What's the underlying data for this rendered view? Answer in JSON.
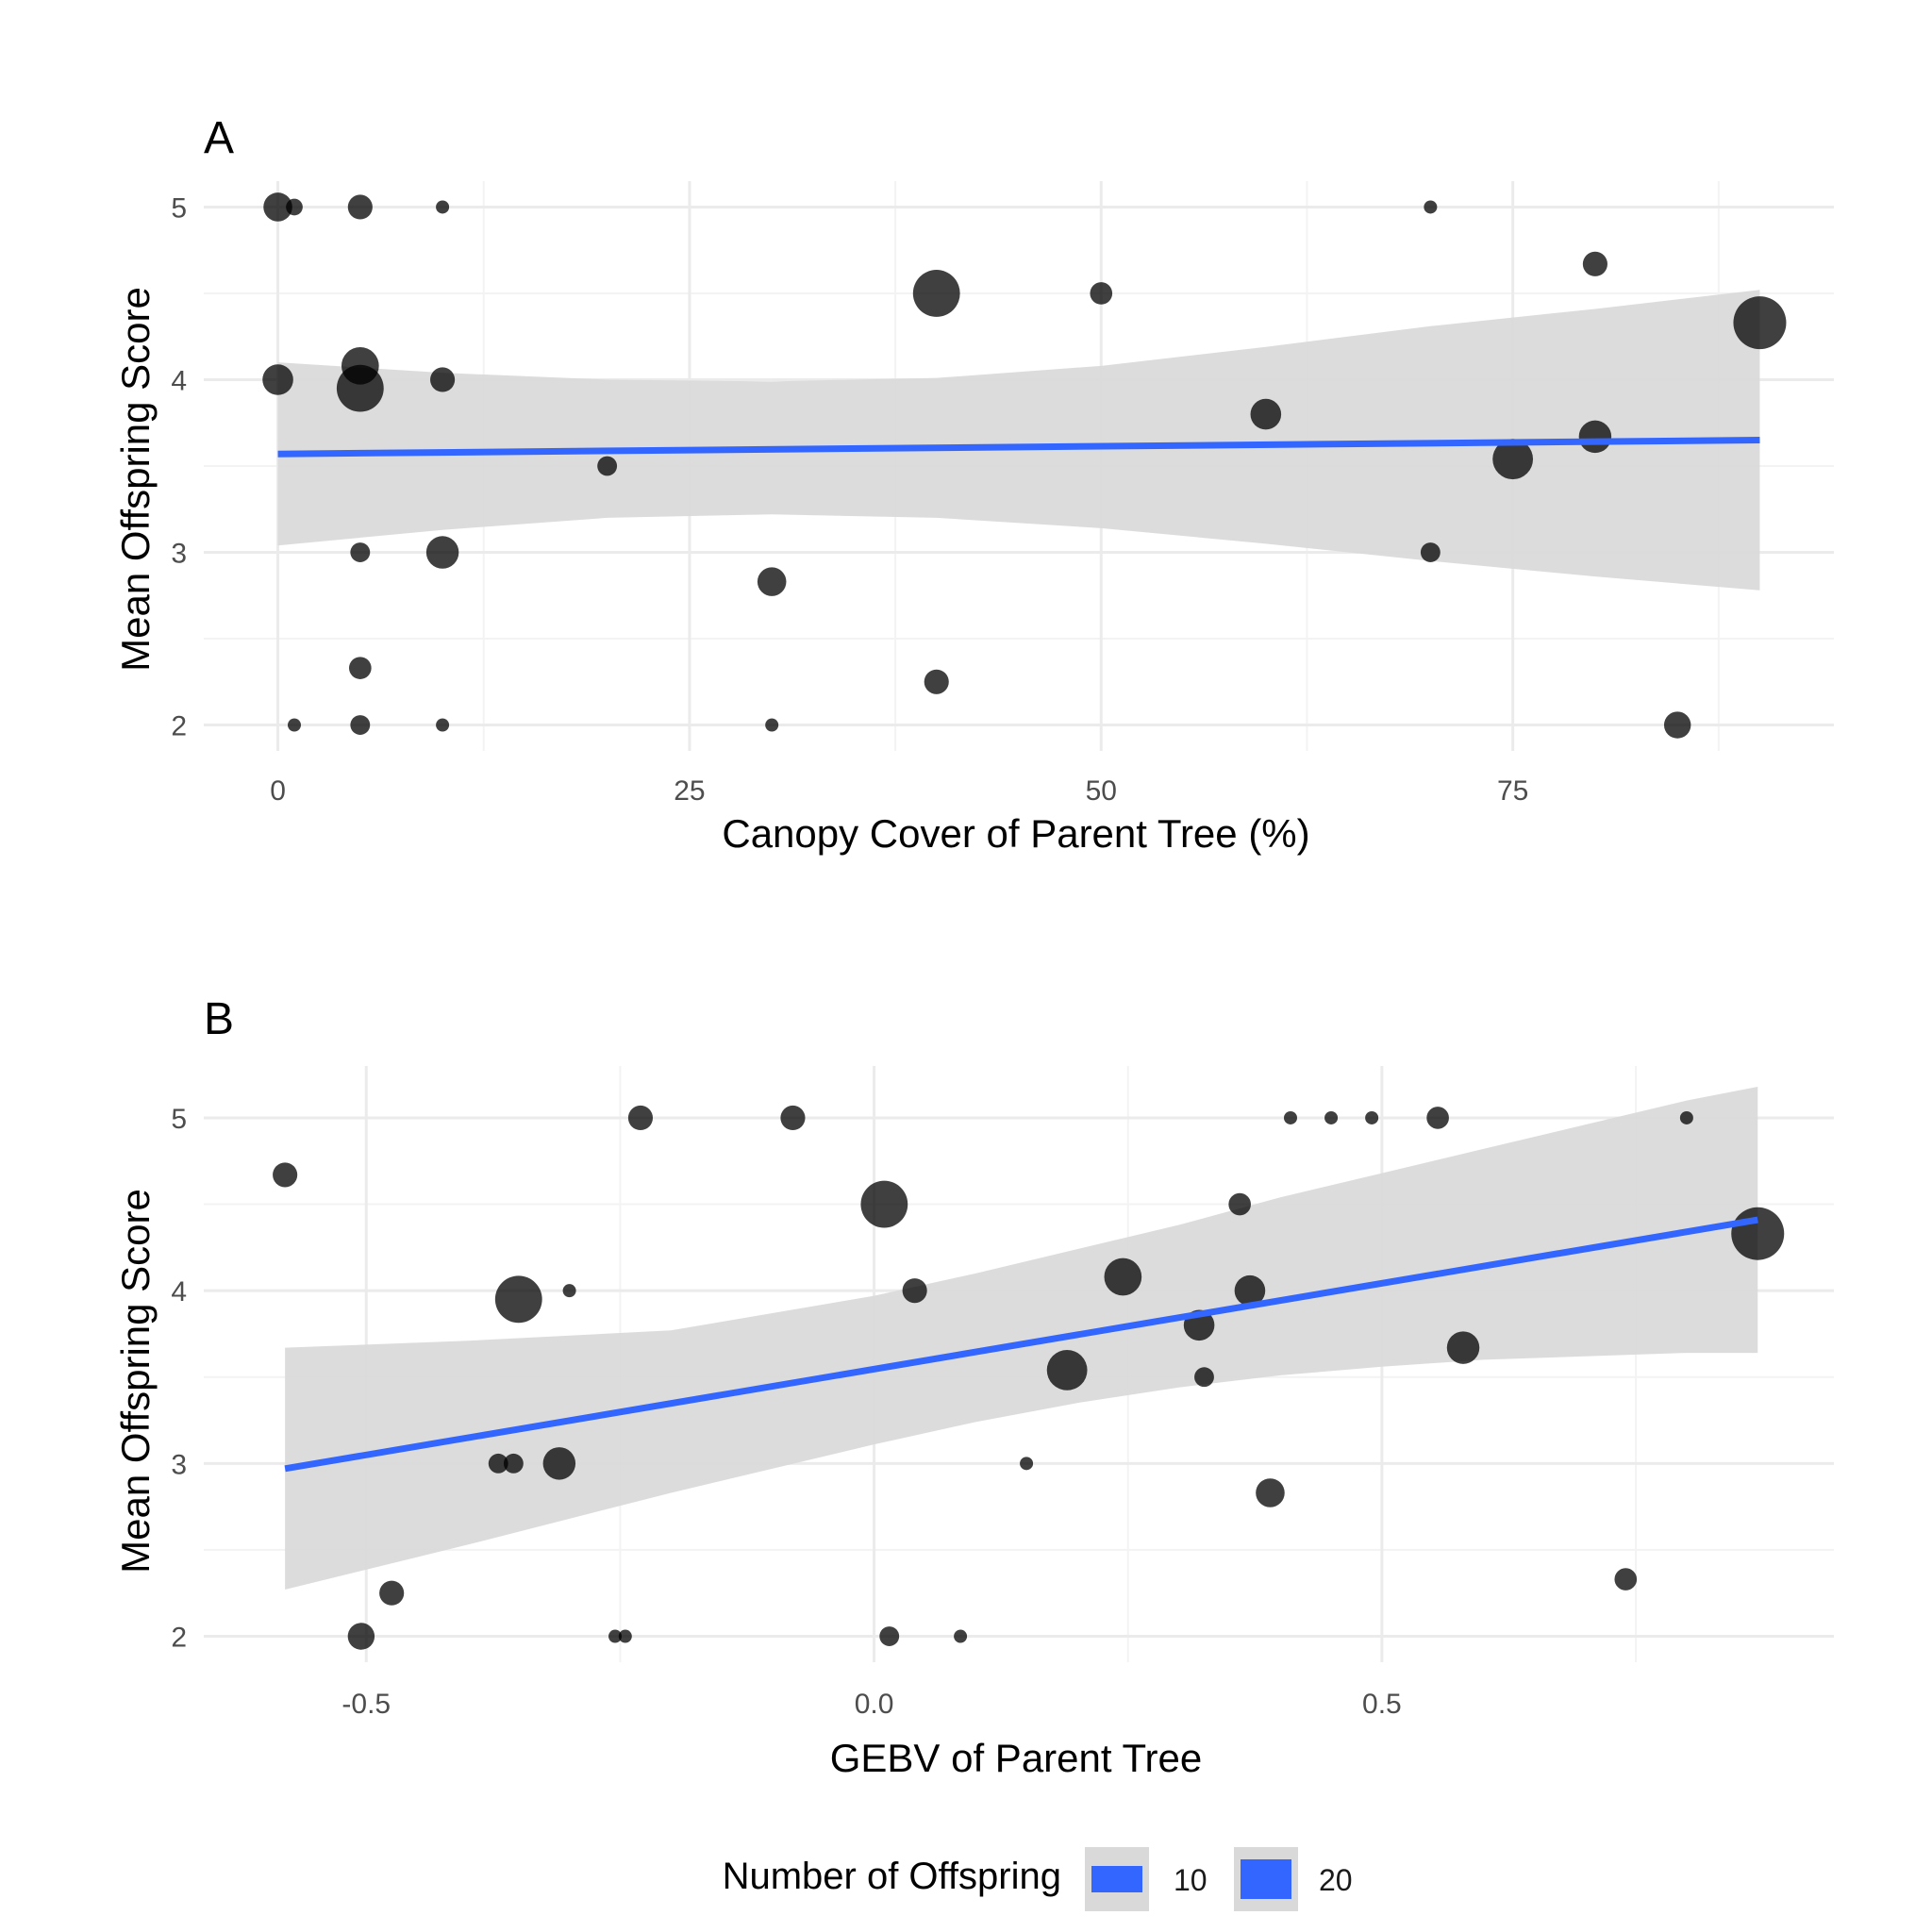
{
  "chart_data": [
    {
      "type": "scatter",
      "panel": "A",
      "xlabel": "Canopy Cover of Parent Tree (%)",
      "ylabel": "Mean Offspring Score",
      "xlim": [
        -4.5,
        94.5
      ],
      "ylim": [
        1.85,
        5.15
      ],
      "x_ticks": [
        0,
        25,
        50,
        75
      ],
      "x_tick_labels": [
        "0",
        "25",
        "50",
        "75"
      ],
      "y_ticks": [
        2,
        3,
        4,
        5
      ],
      "y_tick_labels": [
        "2",
        "3",
        "4",
        "5"
      ],
      "grid": true,
      "points": [
        {
          "x": 0,
          "y": 5,
          "n": 8
        },
        {
          "x": 1,
          "y": 5,
          "n": 3
        },
        {
          "x": 5,
          "y": 5,
          "n": 6
        },
        {
          "x": 10,
          "y": 5,
          "n": 2
        },
        {
          "x": 70,
          "y": 5,
          "n": 2
        },
        {
          "x": 80,
          "y": 4.67,
          "n": 6
        },
        {
          "x": 40,
          "y": 4.5,
          "n": 20
        },
        {
          "x": 50,
          "y": 4.5,
          "n": 5
        },
        {
          "x": 90,
          "y": 4.33,
          "n": 25
        },
        {
          "x": 5,
          "y": 4.08,
          "n": 13
        },
        {
          "x": 0,
          "y": 4,
          "n": 9
        },
        {
          "x": 10,
          "y": 4,
          "n": 6
        },
        {
          "x": 5,
          "y": 3.95,
          "n": 20
        },
        {
          "x": 60,
          "y": 3.8,
          "n": 9
        },
        {
          "x": 80,
          "y": 3.67,
          "n": 10
        },
        {
          "x": 75,
          "y": 3.54,
          "n": 15
        },
        {
          "x": 20,
          "y": 3.5,
          "n": 4
        },
        {
          "x": 5,
          "y": 3,
          "n": 4
        },
        {
          "x": 10,
          "y": 3,
          "n": 10
        },
        {
          "x": 70,
          "y": 3,
          "n": 4
        },
        {
          "x": 30,
          "y": 2.83,
          "n": 8
        },
        {
          "x": 5,
          "y": 2.33,
          "n": 5
        },
        {
          "x": 40,
          "y": 2.25,
          "n": 6
        },
        {
          "x": 1,
          "y": 2,
          "n": 2
        },
        {
          "x": 5,
          "y": 2,
          "n": 4
        },
        {
          "x": 10,
          "y": 2,
          "n": 2
        },
        {
          "x": 30,
          "y": 2,
          "n": 2
        },
        {
          "x": 85,
          "y": 2,
          "n": 7
        }
      ],
      "fit": {
        "x": [
          0,
          90
        ],
        "y": [
          3.57,
          3.65
        ]
      },
      "ci": {
        "x": [
          0,
          10,
          20,
          30,
          40,
          50,
          60,
          70,
          80,
          90
        ],
        "lower": [
          3.04,
          3.13,
          3.2,
          3.22,
          3.2,
          3.14,
          3.05,
          2.95,
          2.86,
          2.78
        ],
        "upper": [
          4.1,
          4.04,
          4.0,
          3.99,
          4.01,
          4.08,
          4.19,
          4.31,
          4.41,
          4.52
        ]
      }
    },
    {
      "type": "scatter",
      "panel": "B",
      "xlabel": "GEBV of Parent Tree",
      "ylabel": "Mean Offspring Score",
      "xlim": [
        -0.66,
        0.945
      ],
      "ylim": [
        1.85,
        5.3
      ],
      "x_ticks": [
        -0.5,
        0.0,
        0.5
      ],
      "x_tick_labels": [
        "-0.5",
        "0.0",
        "0.5"
      ],
      "y_ticks": [
        2,
        3,
        4,
        5
      ],
      "y_tick_labels": [
        "2",
        "3",
        "4",
        "5"
      ],
      "grid": true,
      "points": [
        {
          "x": -0.58,
          "y": 4.67,
          "n": 6
        },
        {
          "x": -0.23,
          "y": 5,
          "n": 6
        },
        {
          "x": -0.08,
          "y": 5,
          "n": 6
        },
        {
          "x": 0.41,
          "y": 5,
          "n": 2
        },
        {
          "x": 0.45,
          "y": 5,
          "n": 2
        },
        {
          "x": 0.49,
          "y": 5,
          "n": 2
        },
        {
          "x": 0.555,
          "y": 5,
          "n": 5
        },
        {
          "x": 0.8,
          "y": 5,
          "n": 2
        },
        {
          "x": 0.01,
          "y": 4.5,
          "n": 20
        },
        {
          "x": 0.36,
          "y": 4.5,
          "n": 5
        },
        {
          "x": 0.87,
          "y": 4.33,
          "n": 25
        },
        {
          "x": -0.35,
          "y": 3.95,
          "n": 20
        },
        {
          "x": -0.3,
          "y": 4,
          "n": 2
        },
        {
          "x": 0.04,
          "y": 4,
          "n": 6
        },
        {
          "x": 0.37,
          "y": 4,
          "n": 9
        },
        {
          "x": 0.245,
          "y": 4.08,
          "n": 13
        },
        {
          "x": 0.32,
          "y": 3.8,
          "n": 9
        },
        {
          "x": 0.58,
          "y": 3.67,
          "n": 10
        },
        {
          "x": 0.19,
          "y": 3.54,
          "n": 15
        },
        {
          "x": 0.325,
          "y": 3.5,
          "n": 4
        },
        {
          "x": -0.37,
          "y": 3,
          "n": 4
        },
        {
          "x": -0.355,
          "y": 3,
          "n": 4
        },
        {
          "x": -0.31,
          "y": 3,
          "n": 10
        },
        {
          "x": 0.15,
          "y": 3,
          "n": 2
        },
        {
          "x": 0.39,
          "y": 2.83,
          "n": 8
        },
        {
          "x": 0.74,
          "y": 2.33,
          "n": 5
        },
        {
          "x": -0.475,
          "y": 2.25,
          "n": 6
        },
        {
          "x": -0.505,
          "y": 2,
          "n": 7
        },
        {
          "x": -0.255,
          "y": 2,
          "n": 2
        },
        {
          "x": -0.245,
          "y": 2,
          "n": 2
        },
        {
          "x": 0.015,
          "y": 2,
          "n": 4
        },
        {
          "x": 0.085,
          "y": 2,
          "n": 2
        }
      ],
      "fit": {
        "x": [
          -0.58,
          0.87
        ],
        "y": [
          2.97,
          4.41
        ]
      },
      "ci": {
        "x": [
          -0.58,
          -0.4,
          -0.2,
          0.0,
          0.1,
          0.2,
          0.3,
          0.4,
          0.5,
          0.6,
          0.7,
          0.8,
          0.87
        ],
        "lower": [
          2.27,
          2.53,
          2.83,
          3.11,
          3.24,
          3.35,
          3.44,
          3.51,
          3.56,
          3.6,
          3.62,
          3.64,
          3.64
        ],
        "upper": [
          3.67,
          3.71,
          3.77,
          3.97,
          4.1,
          4.24,
          4.38,
          4.54,
          4.68,
          4.82,
          4.96,
          5.1,
          5.18
        ]
      }
    }
  ],
  "panels": {
    "a": {
      "tag": "A",
      "xlabel": "Canopy Cover of Parent Tree (%)",
      "ylabel": "Mean Offspring Score"
    },
    "b": {
      "tag": "B",
      "xlabel": "GEBV of Parent Tree",
      "ylabel": "Mean Offspring Score"
    }
  },
  "legend": {
    "title": "Number of Offspring",
    "items": [
      {
        "label": "10",
        "n": 10
      },
      {
        "label": "20",
        "n": 20
      }
    ],
    "key_fill": "#3366ff",
    "key_background": "#d9d9d9"
  },
  "colors": {
    "point": "#000000",
    "point_opacity": 0.75,
    "fit_line": "#3366ff",
    "ci_band": "#d9d9d9",
    "grid_major": "#ebebeb",
    "grid_minor": "#f3f3f3"
  },
  "size_scale": {
    "n_min": 2,
    "n_max": 25,
    "r_min": 7,
    "r_max": 28
  }
}
